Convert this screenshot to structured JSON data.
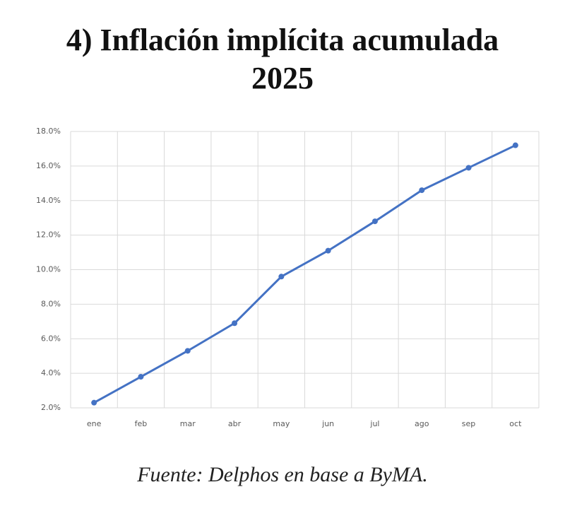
{
  "chart_data": {
    "type": "line",
    "title": "4) Inflación implícita acumulada 2025",
    "source": "Fuente: Delphos en base a ByMA.",
    "categories": [
      "ene",
      "feb",
      "mar",
      "abr",
      "may",
      "jun",
      "jul",
      "ago",
      "sep",
      "oct"
    ],
    "series": [
      {
        "color": "#4472c4",
        "values": [
          2.3,
          3.8,
          5.3,
          6.9,
          9.6,
          11.1,
          12.8,
          14.6,
          15.9,
          17.2
        ]
      }
    ],
    "ylim": [
      2,
      18
    ],
    "yticks": [
      {
        "value": 2,
        "label": "2.0%"
      },
      {
        "value": 4,
        "label": "4.0%"
      },
      {
        "value": 6,
        "label": "6.0%"
      },
      {
        "value": 8,
        "label": "8.0%"
      },
      {
        "value": 10,
        "label": "10.0%"
      },
      {
        "value": 12,
        "label": "12.0%"
      },
      {
        "value": 14,
        "label": "14.0%"
      },
      {
        "value": 16,
        "label": "16.0%"
      },
      {
        "value": 18,
        "label": "18.0%"
      }
    ],
    "grid": true
  }
}
